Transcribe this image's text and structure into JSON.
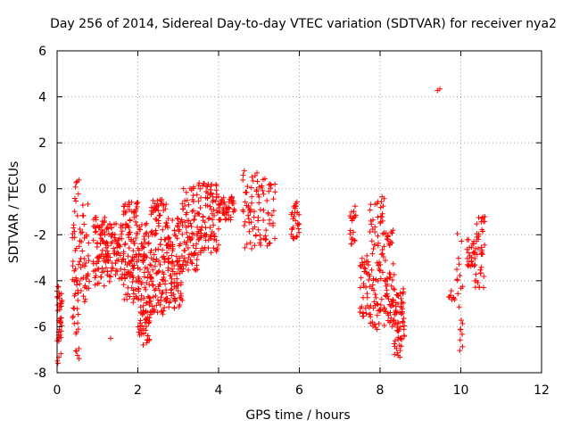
{
  "chart_data": {
    "type": "scatter",
    "title": "Day 256 of 2014, Sidereal Day-to-day VTEC variation (SDTVAR) for receiver nya2",
    "xlabel": "GPS time / hours",
    "ylabel": "SDTVAR / TECUs",
    "xlim": [
      0,
      12
    ],
    "ylim": [
      -8,
      6
    ],
    "xticks": [
      0,
      2,
      4,
      6,
      8,
      10,
      12
    ],
    "yticks": [
      -8,
      -6,
      -4,
      -2,
      0,
      2,
      4,
      6
    ],
    "grid": true,
    "marker": "+",
    "color": "#ff0000",
    "series": [
      {
        "name": "nya2",
        "clusters": [
          {
            "x": [
              0.0,
              0.12
            ],
            "y": [
              -7.6,
              -4.2
            ],
            "n": 40
          },
          {
            "x": [
              0.38,
              0.55
            ],
            "y": [
              -7.5,
              0.4
            ],
            "n": 50
          },
          {
            "x": [
              0.55,
              0.8
            ],
            "y": [
              -5.0,
              -0.6
            ],
            "n": 40
          },
          {
            "x": [
              0.9,
              1.3
            ],
            "y": [
              -4.3,
              -1.2
            ],
            "n": 90
          },
          {
            "x": [
              1.3,
              1.65
            ],
            "y": [
              -4.0,
              -1.5
            ],
            "n": 60
          },
          {
            "x": [
              1.65,
              2.0
            ],
            "y": [
              -5.2,
              -0.5
            ],
            "n": 100
          },
          {
            "x": [
              2.0,
              2.3
            ],
            "y": [
              -6.8,
              -1.5
            ],
            "n": 110
          },
          {
            "x": [
              2.3,
              2.7
            ],
            "y": [
              -5.5,
              -0.4
            ],
            "n": 120
          },
          {
            "x": [
              2.7,
              3.1
            ],
            "y": [
              -5.2,
              -1.2
            ],
            "n": 110
          },
          {
            "x": [
              3.1,
              3.5
            ],
            "y": [
              -3.6,
              0.1
            ],
            "n": 80
          },
          {
            "x": [
              3.5,
              4.0
            ],
            "y": [
              -2.8,
              0.4
            ],
            "n": 90
          },
          {
            "x": [
              4.0,
              4.4
            ],
            "y": [
              -1.4,
              -0.3
            ],
            "n": 50
          },
          {
            "x": [
              4.6,
              5.0
            ],
            "y": [
              -2.7,
              0.8
            ],
            "n": 50
          },
          {
            "x": [
              5.0,
              5.4
            ],
            "y": [
              -2.5,
              0.6
            ],
            "n": 40
          },
          {
            "x": [
              5.8,
              6.0
            ],
            "y": [
              -2.2,
              -0.5
            ],
            "n": 30
          },
          {
            "x": [
              7.25,
              7.4
            ],
            "y": [
              -2.5,
              -0.7
            ],
            "n": 20
          },
          {
            "x": [
              7.5,
              7.75
            ],
            "y": [
              -5.6,
              -2.9
            ],
            "n": 40
          },
          {
            "x": [
              7.75,
              8.1
            ],
            "y": [
              -6.2,
              -0.3
            ],
            "n": 80
          },
          {
            "x": [
              8.1,
              8.35
            ],
            "y": [
              -6.0,
              -1.8
            ],
            "n": 60
          },
          {
            "x": [
              8.35,
              8.6
            ],
            "y": [
              -7.4,
              -4.2
            ],
            "n": 60
          },
          {
            "x": [
              9.42,
              9.48
            ],
            "y": [
              4.1,
              4.6
            ],
            "n": 2
          },
          {
            "x": [
              9.7,
              9.85
            ],
            "y": [
              -4.9,
              -4.4
            ],
            "n": 8
          },
          {
            "x": [
              9.9,
              10.05
            ],
            "y": [
              -7.2,
              -1.9
            ],
            "n": 20
          },
          {
            "x": [
              10.15,
              10.35
            ],
            "y": [
              -3.4,
              -2.2
            ],
            "n": 25
          },
          {
            "x": [
              10.35,
              10.6
            ],
            "y": [
              -4.3,
              -1.2
            ],
            "n": 40
          },
          {
            "x": [
              1.3,
              1.35
            ],
            "y": [
              -6.5,
              -6.5
            ],
            "n": 1
          }
        ]
      }
    ]
  }
}
